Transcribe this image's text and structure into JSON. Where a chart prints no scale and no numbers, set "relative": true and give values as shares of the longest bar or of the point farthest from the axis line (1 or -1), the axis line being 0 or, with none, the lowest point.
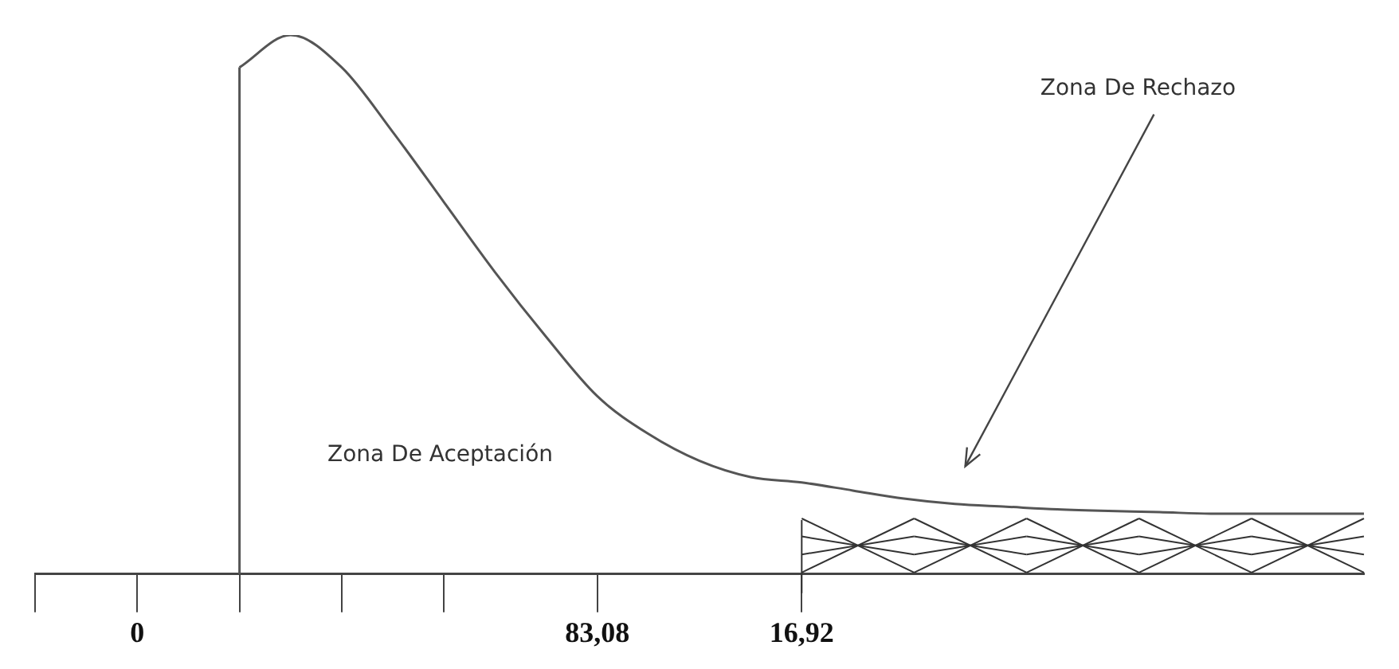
{
  "chart_data": {
    "type": "line",
    "relative": true,
    "color": "#555555",
    "categories": [
      null,
      null,
      "0",
      null,
      null,
      null,
      null,
      null,
      null,
      null,
      null,
      "83,08",
      null,
      null,
      null,
      "16,92",
      null,
      null,
      null,
      null,
      null,
      null,
      null,
      null,
      null,
      null,
      null
    ],
    "values": [
      null,
      null,
      null,
      null,
      0.94,
      1,
      0.94,
      0.82,
      0.69,
      0.56,
      0.44,
      0.33,
      0.26,
      0.21,
      0.18,
      0.17,
      0.155,
      0.14,
      0.13,
      0.125,
      0.12,
      0.117,
      0.115,
      0.112,
      0.112,
      0.112,
      0.112
    ],
    "annotations": [
      "Zona De Aceptación",
      "Zona De Rechazo"
    ],
    "tick_labels": "x",
    "legend": false,
    "marker": "none",
    "line_style": "solid"
  }
}
